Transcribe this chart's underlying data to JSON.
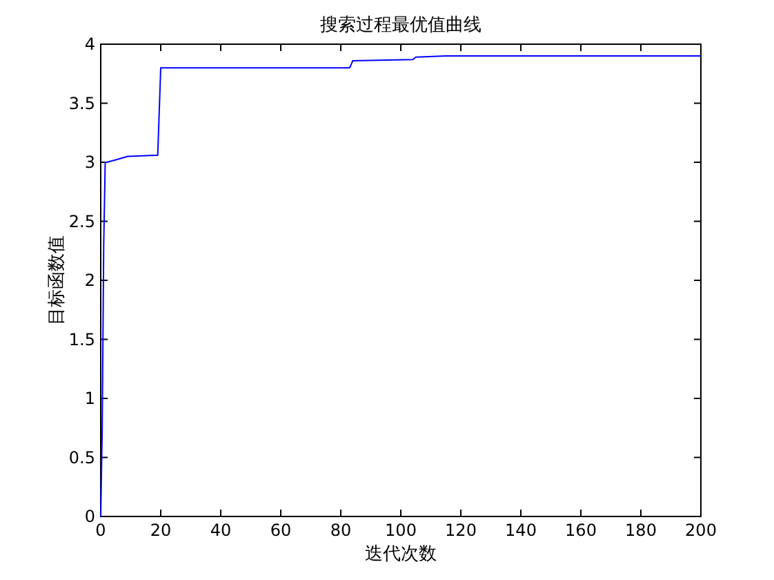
{
  "chart_data": {
    "type": "line",
    "title": "搜索过程最优值曲线",
    "xlabel": "迭代次数",
    "ylabel": "目标函数值",
    "x": [
      0,
      0.5,
      1,
      1.5,
      2,
      5,
      9,
      19,
      20,
      83,
      84,
      104,
      105,
      115,
      200
    ],
    "series": [
      {
        "color": "#0000ff",
        "values": [
          0,
          0.75,
          2.3,
          3.0,
          3.0,
          3.02,
          3.05,
          3.06,
          3.8,
          3.8,
          3.86,
          3.87,
          3.89,
          3.9,
          3.9
        ]
      }
    ],
    "xlim": [
      0,
      200
    ],
    "ylim": [
      0,
      4
    ],
    "xticks": [
      0,
      20,
      40,
      60,
      80,
      100,
      120,
      140,
      160,
      180,
      200
    ],
    "yticks": [
      0,
      0.5,
      1,
      1.5,
      2,
      2.5,
      3,
      3.5,
      4
    ],
    "grid": false,
    "marker": "none",
    "line_style": "solid"
  }
}
